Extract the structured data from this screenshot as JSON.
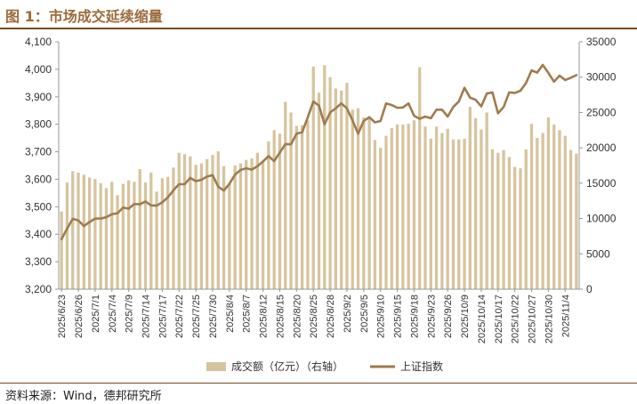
{
  "title": "图 1：市场成交延续缩量",
  "source": "资料来源：Wind，德邦研究所",
  "colors": {
    "bar": "#D6C49D",
    "line": "#A07B4F",
    "title": "#9C6B3A",
    "rule": "#7A4A1F"
  },
  "chart_data": {
    "type": "bar+line",
    "x": [
      "2025/6/23",
      "2025/6/24",
      "2025/6/25",
      "2025/6/26",
      "2025/6/27",
      "2025/6/30",
      "2025/7/1",
      "2025/7/2",
      "2025/7/3",
      "2025/7/4",
      "2025/7/7",
      "2025/7/8",
      "2025/7/9",
      "2025/7/10",
      "2025/7/11",
      "2025/7/14",
      "2025/7/15",
      "2025/7/16",
      "2025/7/17",
      "2025/7/18",
      "2025/7/21",
      "2025/7/22",
      "2025/7/23",
      "2025/7/24",
      "2025/7/25",
      "2025/7/28",
      "2025/7/29",
      "2025/7/30",
      "2025/7/31",
      "2025/8/1",
      "2025/8/4",
      "2025/8/5",
      "2025/8/6",
      "2025/8/7",
      "2025/8/8",
      "2025/8/11",
      "2025/8/12",
      "2025/8/13",
      "2025/8/14",
      "2025/8/15",
      "2025/8/18",
      "2025/8/19",
      "2025/8/20",
      "2025/8/21",
      "2025/8/22",
      "2025/8/25",
      "2025/8/26",
      "2025/8/27",
      "2025/8/28",
      "2025/8/29",
      "2025/9/1",
      "2025/9/2",
      "2025/9/3",
      "2025/9/4",
      "2025/9/5",
      "2025/9/8",
      "2025/9/9",
      "2025/9/10",
      "2025/9/11",
      "2025/9/12",
      "2025/9/15",
      "2025/9/16",
      "2025/9/17",
      "2025/9/18",
      "2025/9/19",
      "2025/9/22",
      "2025/9/23",
      "2025/9/24",
      "2025/9/25",
      "2025/9/26",
      "2025/9/29",
      "2025/9/30",
      "2025/10/9",
      "2025/10/10",
      "2025/10/13",
      "2025/10/14",
      "2025/10/15",
      "2025/10/16",
      "2025/10/17",
      "2025/10/20",
      "2025/10/21",
      "2025/10/22",
      "2025/10/23",
      "2025/10/24",
      "2025/10/27",
      "2025/10/28",
      "2025/10/29",
      "2025/10/30",
      "2025/10/31",
      "2025/11/3",
      "2025/11/4",
      "2025/11/5",
      "2025/11/6"
    ],
    "x_tick_labels": [
      "2025/6/23",
      "2025/6/26",
      "2025/7/1",
      "2025/7/4",
      "2025/7/9",
      "2025/7/14",
      "2025/7/17",
      "2025/7/22",
      "2025/7/25",
      "2025/7/30",
      "2025/8/4",
      "2025/8/7",
      "2025/8/12",
      "2025/8/15",
      "2025/8/20",
      "2025/8/25",
      "2025/8/28",
      "2025/9/2",
      "2025/9/5",
      "2025/9/10",
      "2025/9/15",
      "2025/9/18",
      "2025/9/23",
      "2025/9/26",
      "2025/10/9",
      "2025/10/14",
      "2025/10/17",
      "2025/10/22",
      "2025/10/27",
      "2025/10/30",
      "2025/11/4"
    ],
    "series": [
      {
        "name": "成交额（亿元）（右轴）",
        "type": "bar",
        "axis": "right",
        "values": [
          11000,
          15100,
          16700,
          16500,
          16200,
          15800,
          15600,
          15000,
          14300,
          15200,
          13300,
          14900,
          15400,
          15200,
          17000,
          15100,
          16500,
          13800,
          15700,
          15900,
          17200,
          19300,
          19100,
          18800,
          17600,
          17800,
          18400,
          19000,
          19500,
          17400,
          15000,
          17500,
          17800,
          18300,
          18500,
          19300,
          18100,
          20900,
          22500,
          22000,
          26500,
          25000,
          23100,
          23200,
          23900,
          31500,
          27800,
          31700,
          30000,
          28400,
          28100,
          29200,
          25400,
          25600,
          24300,
          24100,
          21100,
          20000,
          21700,
          22800,
          23300,
          23300,
          23400,
          23900,
          31400,
          23000,
          21300,
          23000,
          22100,
          22700,
          21200,
          21200,
          21300,
          25800,
          24200,
          22600,
          25000,
          19800,
          19300,
          19700,
          18700,
          17300,
          17100,
          19800,
          23400,
          21400,
          22100,
          24300,
          23300,
          22500,
          21700,
          19700,
          19200
        ]
      },
      {
        "name": "上证指数",
        "type": "line",
        "axis": "left",
        "values": [
          3382,
          3420,
          3456,
          3450,
          3430,
          3444,
          3457,
          3457,
          3462,
          3473,
          3476,
          3497,
          3493,
          3510,
          3509,
          3519,
          3505,
          3504,
          3516,
          3534,
          3560,
          3582,
          3582,
          3605,
          3593,
          3598,
          3610,
          3615,
          3573,
          3559,
          3583,
          3617,
          3634,
          3640,
          3635,
          3647,
          3665,
          3684,
          3666,
          3697,
          3728,
          3727,
          3766,
          3771,
          3825,
          3883,
          3868,
          3800,
          3843,
          3858,
          3876,
          3858,
          3814,
          3766,
          3812,
          3826,
          3807,
          3812,
          3876,
          3870,
          3860,
          3861,
          3876,
          3831,
          3820,
          3828,
          3822,
          3853,
          3853,
          3828,
          3863,
          3883,
          3933,
          3897,
          3889,
          3865,
          3912,
          3916,
          3840,
          3863,
          3916,
          3914,
          3922,
          3950,
          3996,
          3988,
          4016,
          3987,
          3955,
          3977,
          3961,
          3969,
          3979
        ]
      }
    ],
    "y_left": {
      "min": 3200,
      "max": 4100,
      "step": 100,
      "tick_labels": [
        "3,200",
        "3,300",
        "3,400",
        "3,500",
        "3,600",
        "3,700",
        "3,800",
        "3,900",
        "4,000",
        "4,100"
      ]
    },
    "y_right": {
      "min": 0,
      "max": 35000,
      "step": 5000,
      "tick_labels": [
        "0",
        "5000",
        "10000",
        "15000",
        "20000",
        "25000",
        "30000",
        "35000"
      ]
    },
    "legend": {
      "position": "bottom",
      "entries": [
        "成交额（亿元）（右轴）",
        "上证指数"
      ]
    },
    "grid": false
  }
}
